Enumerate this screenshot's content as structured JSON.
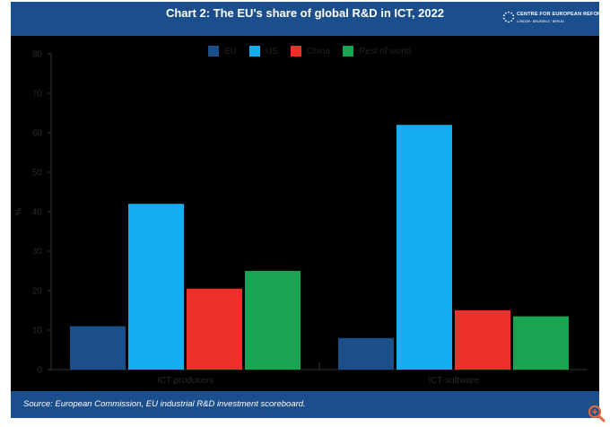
{
  "header": {
    "title": "Chart 2: The EU's share of global R&D in ICT, 2022"
  },
  "logo": {
    "name": "CENTRE FOR EUROPEAN REFORM",
    "cities": "LONDON · BRUSSELS · BERLIN"
  },
  "footer": {
    "source": "Source: European Commission, EU industrial R&D investment scoreboard."
  },
  "chart_data": {
    "type": "bar",
    "title": "Chart 2: The EU's share of global R&D in ICT, 2022",
    "xlabel": "",
    "ylabel": "%",
    "ylim": [
      0,
      80
    ],
    "yticks": [
      0,
      10,
      20,
      30,
      40,
      50,
      60,
      70,
      80
    ],
    "categories": [
      "ICT producers",
      "ICT software"
    ],
    "series": [
      {
        "name": "EU",
        "color": "#1a4f8a",
        "values": [
          11,
          8
        ]
      },
      {
        "name": "US",
        "color": "#13aef0",
        "values": [
          42,
          62
        ]
      },
      {
        "name": "China",
        "color": "#ee2f2b",
        "values": [
          20.5,
          15
        ]
      },
      {
        "name": "Rest of world",
        "color": "#18a450",
        "values": [
          25,
          13.5
        ]
      }
    ],
    "legend_position": "top-center",
    "grid": false
  }
}
